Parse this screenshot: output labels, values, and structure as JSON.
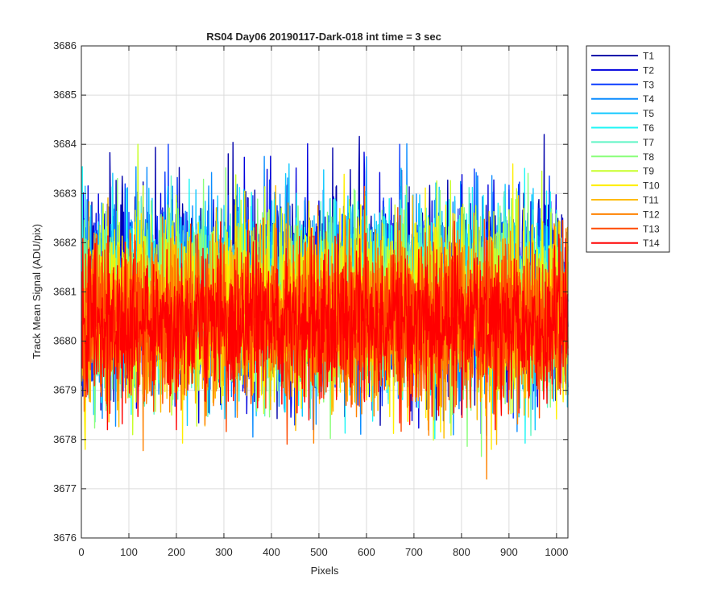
{
  "chart_data": {
    "type": "line",
    "title": "RS04 Day06 20190117-Dark-018 int time = 3 sec",
    "xlabel": "Pixels",
    "ylabel": "Track Mean Signal (ADU/pix)",
    "xlim": [
      0,
      1024
    ],
    "ylim": [
      3676,
      3686
    ],
    "xticks": [
      0,
      100,
      200,
      300,
      400,
      500,
      600,
      700,
      800,
      900,
      1000
    ],
    "yticks": [
      3676,
      3677,
      3678,
      3679,
      3680,
      3681,
      3682,
      3683,
      3684,
      3685,
      3686
    ],
    "grid": true,
    "legend_position": "outside-top-right",
    "x_points": 1024,
    "series": [
      {
        "name": "T1",
        "color": "#0000aa",
        "mean": 3681.0,
        "std": 1.0,
        "min": 3677.0,
        "max": 3684.2
      },
      {
        "name": "T2",
        "color": "#0000dd",
        "mean": 3681.0,
        "std": 0.95,
        "min": 3677.5,
        "max": 3684.2
      },
      {
        "name": "T3",
        "color": "#0a3cff",
        "mean": 3680.9,
        "std": 0.95,
        "min": 3677.8,
        "max": 3684.0
      },
      {
        "name": "T4",
        "color": "#0a8cff",
        "mean": 3680.9,
        "std": 0.95,
        "min": 3677.6,
        "max": 3684.3
      },
      {
        "name": "T5",
        "color": "#10c8ff",
        "mean": 3680.9,
        "std": 0.95,
        "min": 3677.5,
        "max": 3684.2
      },
      {
        "name": "T6",
        "color": "#1ef6f6",
        "mean": 3680.8,
        "std": 0.95,
        "min": 3677.1,
        "max": 3684.2
      },
      {
        "name": "T7",
        "color": "#5ff5c5",
        "mean": 3680.8,
        "std": 0.9,
        "min": 3677.2,
        "max": 3684.0
      },
      {
        "name": "T8",
        "color": "#8aff7a",
        "mean": 3680.8,
        "std": 0.9,
        "min": 3677.2,
        "max": 3685.0
      },
      {
        "name": "T9",
        "color": "#c8ff2a",
        "mean": 3680.7,
        "std": 0.9,
        "min": 3677.6,
        "max": 3684.0
      },
      {
        "name": "T10",
        "color": "#ffee00",
        "mean": 3680.6,
        "std": 0.85,
        "min": 3677.8,
        "max": 3683.6
      },
      {
        "name": "T11",
        "color": "#ffbb00",
        "mean": 3680.5,
        "std": 0.85,
        "min": 3677.9,
        "max": 3683.5
      },
      {
        "name": "T12",
        "color": "#ff8200",
        "mean": 3680.4,
        "std": 0.85,
        "min": 3677.1,
        "max": 3683.4
      },
      {
        "name": "T13",
        "color": "#ff4a00",
        "mean": 3680.4,
        "std": 0.8,
        "min": 3676.8,
        "max": 3683.4
      },
      {
        "name": "T14",
        "color": "#ff0000",
        "mean": 3680.4,
        "std": 0.75,
        "min": 3678.2,
        "max": 3684.0
      }
    ]
  }
}
